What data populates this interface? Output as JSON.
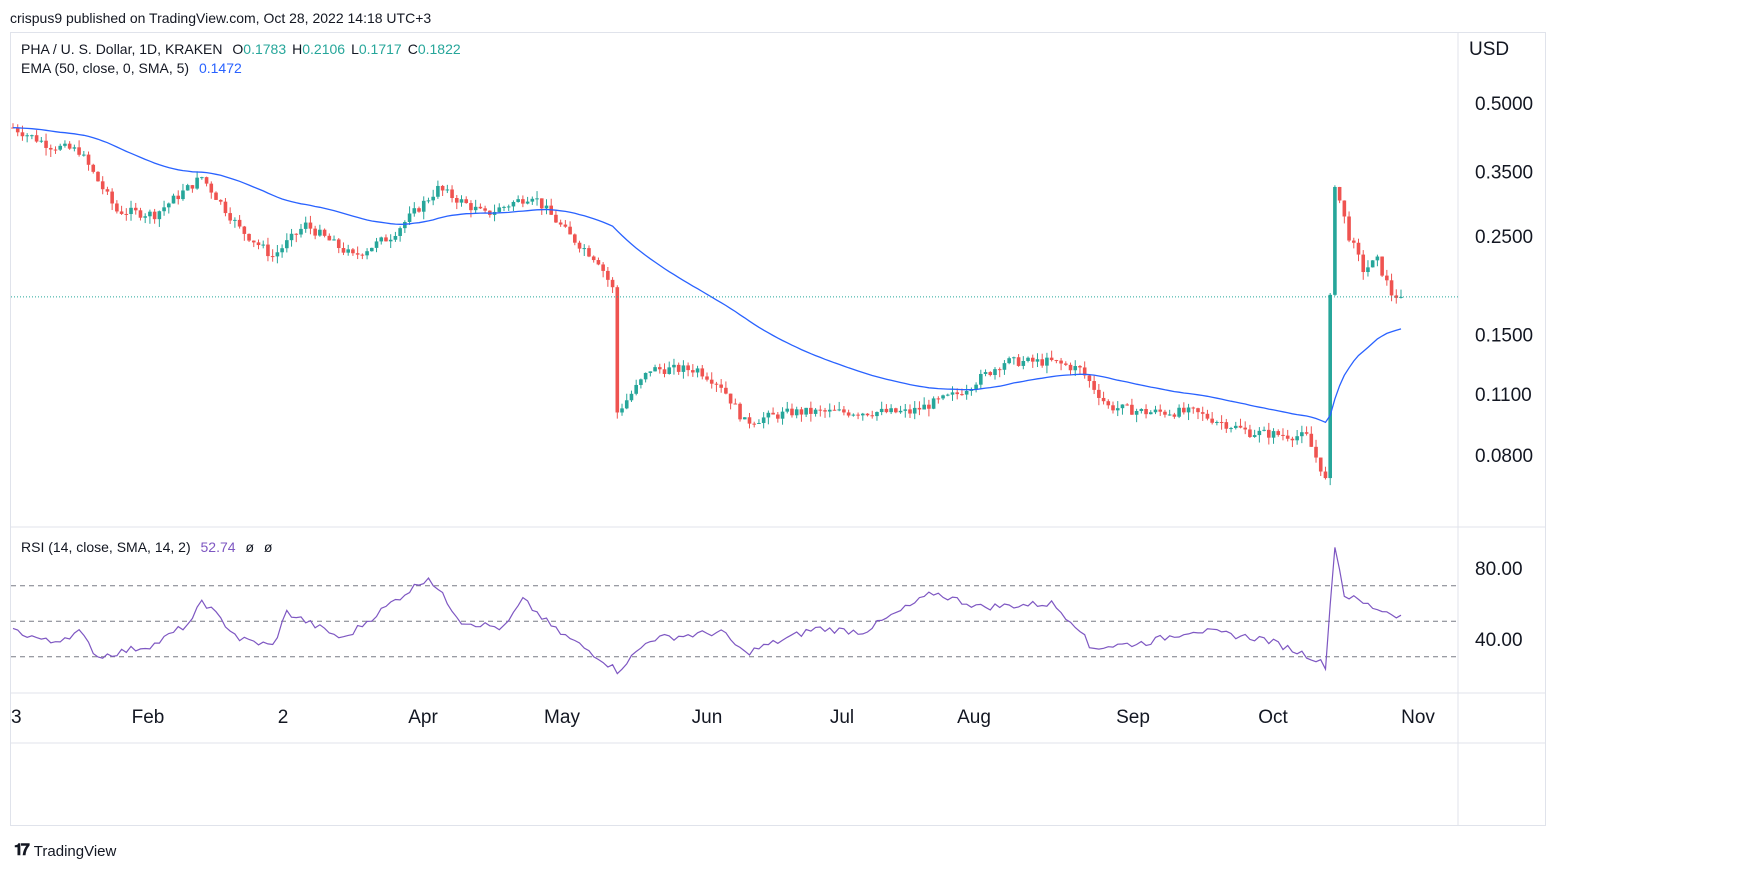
{
  "header": {
    "published": "crispus9 published on TradingView.com, Oct 28, 2022 14:18 UTC+3"
  },
  "symbol": {
    "title": "PHA / U. S. Dollar, 1D, KRAKEN",
    "ohlc": [
      {
        "k": "O",
        "v": "0.1783"
      },
      {
        "k": "H",
        "v": "0.2106"
      },
      {
        "k": "L",
        "v": "0.1717"
      },
      {
        "k": "C",
        "v": "0.1822"
      }
    ]
  },
  "ema_legend": {
    "label": "EMA (50, close, 0, SMA, 5)",
    "value": "0.1472",
    "color": "#2962ff"
  },
  "rsi_legend": {
    "label": "RSI (14, close, SMA, 14, 2)",
    "value": "52.74",
    "extra1": "ø",
    "extra2": "ø",
    "color": "#7e57c2"
  },
  "colors": {
    "up": "#26a69a",
    "down": "#ef5350",
    "ema": "#2962ff",
    "rsi": "#7e57c2",
    "last_price_line": "#26a69a"
  },
  "footer": {
    "brand": "TradingView",
    "logo": "tradingview-logo-icon"
  },
  "chart_data": [
    {
      "type": "candlestick",
      "title": "PHA / U. S. Dollar, 1D, KRAKEN",
      "currency_label": "USD",
      "y_scale": "log",
      "y_ticks": [
        {
          "value": 0.5,
          "label": "0.5000"
        },
        {
          "value": 0.35,
          "label": "0.3500"
        },
        {
          "value": 0.25,
          "label": "0.2500"
        },
        {
          "value": 0.15,
          "label": "0.1500"
        },
        {
          "value": 0.11,
          "label": "0.1100"
        },
        {
          "value": 0.08,
          "label": "0.0800"
        }
      ],
      "x_ticks": [
        "3",
        "Feb",
        "2",
        "Apr",
        "May",
        "Jun",
        "Jul",
        "Aug",
        "Sep",
        "Oct",
        "Nov"
      ],
      "last_price": 0.1822,
      "anchors": [
        {
          "day": 0,
          "price": 0.44
        },
        {
          "day": 8,
          "price": 0.4
        },
        {
          "day": 14,
          "price": 0.39
        },
        {
          "day": 22,
          "price": 0.285
        },
        {
          "day": 30,
          "price": 0.28
        },
        {
          "day": 40,
          "price": 0.34
        },
        {
          "day": 48,
          "price": 0.26
        },
        {
          "day": 55,
          "price": 0.225
        },
        {
          "day": 62,
          "price": 0.265
        },
        {
          "day": 72,
          "price": 0.225
        },
        {
          "day": 80,
          "price": 0.25
        },
        {
          "day": 90,
          "price": 0.32
        },
        {
          "day": 100,
          "price": 0.28
        },
        {
          "day": 110,
          "price": 0.31
        },
        {
          "day": 118,
          "price": 0.25
        },
        {
          "day": 124,
          "price": 0.22
        },
        {
          "day": 127,
          "price": 0.19
        },
        {
          "day": 128,
          "price": 0.1
        },
        {
          "day": 135,
          "price": 0.125
        },
        {
          "day": 145,
          "price": 0.125
        },
        {
          "day": 150,
          "price": 0.115
        },
        {
          "day": 155,
          "price": 0.095
        },
        {
          "day": 165,
          "price": 0.1
        },
        {
          "day": 175,
          "price": 0.1
        },
        {
          "day": 190,
          "price": 0.1
        },
        {
          "day": 200,
          "price": 0.11
        },
        {
          "day": 210,
          "price": 0.13
        },
        {
          "day": 220,
          "price": 0.13
        },
        {
          "day": 226,
          "price": 0.125
        },
        {
          "day": 232,
          "price": 0.103
        },
        {
          "day": 240,
          "price": 0.1
        },
        {
          "day": 250,
          "price": 0.1
        },
        {
          "day": 262,
          "price": 0.09
        },
        {
          "day": 274,
          "price": 0.088
        },
        {
          "day": 277,
          "price": 0.075
        },
        {
          "day": 278,
          "price": 0.07
        },
        {
          "day": 279,
          "price": 0.18
        },
        {
          "day": 280,
          "price": 0.33
        },
        {
          "day": 283,
          "price": 0.25
        },
        {
          "day": 286,
          "price": 0.21
        },
        {
          "day": 289,
          "price": 0.22
        },
        {
          "day": 292,
          "price": 0.185
        },
        {
          "day": 294,
          "price": 0.182
        }
      ],
      "series": [
        {
          "name": "EMA (50, close, 0, SMA, 5)",
          "last_value": 0.1472
        }
      ]
    },
    {
      "type": "line",
      "title": "RSI (14, close, SMA, 14, 2)",
      "y_ticks": [
        {
          "value": 80,
          "label": "80.00"
        },
        {
          "value": 40,
          "label": "40.00"
        }
      ],
      "bands": [
        70,
        50,
        30
      ],
      "last_value": 52.74,
      "anchors": [
        {
          "day": 0,
          "rsi": 45
        },
        {
          "day": 8,
          "rsi": 38
        },
        {
          "day": 14,
          "rsi": 44
        },
        {
          "day": 18,
          "rsi": 30
        },
        {
          "day": 30,
          "rsi": 37
        },
        {
          "day": 38,
          "rsi": 50
        },
        {
          "day": 40,
          "rsi": 62
        },
        {
          "day": 48,
          "rsi": 40
        },
        {
          "day": 55,
          "rsi": 36
        },
        {
          "day": 58,
          "rsi": 55
        },
        {
          "day": 70,
          "rsi": 40
        },
        {
          "day": 80,
          "rsi": 60
        },
        {
          "day": 88,
          "rsi": 75
        },
        {
          "day": 95,
          "rsi": 50
        },
        {
          "day": 104,
          "rsi": 46
        },
        {
          "day": 108,
          "rsi": 62
        },
        {
          "day": 115,
          "rsi": 45
        },
        {
          "day": 124,
          "rsi": 30
        },
        {
          "day": 128,
          "rsi": 22
        },
        {
          "day": 135,
          "rsi": 40
        },
        {
          "day": 150,
          "rsi": 44
        },
        {
          "day": 155,
          "rsi": 32
        },
        {
          "day": 170,
          "rsi": 46
        },
        {
          "day": 180,
          "rsi": 44
        },
        {
          "day": 195,
          "rsi": 66
        },
        {
          "day": 205,
          "rsi": 58
        },
        {
          "day": 220,
          "rsi": 60
        },
        {
          "day": 226,
          "rsi": 46
        },
        {
          "day": 228,
          "rsi": 35
        },
        {
          "day": 240,
          "rsi": 38
        },
        {
          "day": 250,
          "rsi": 45
        },
        {
          "day": 265,
          "rsi": 40
        },
        {
          "day": 275,
          "rsi": 30
        },
        {
          "day": 278,
          "rsi": 25
        },
        {
          "day": 280,
          "rsi": 93
        },
        {
          "day": 282,
          "rsi": 65
        },
        {
          "day": 288,
          "rsi": 58
        },
        {
          "day": 294,
          "rsi": 52.74
        }
      ]
    }
  ]
}
